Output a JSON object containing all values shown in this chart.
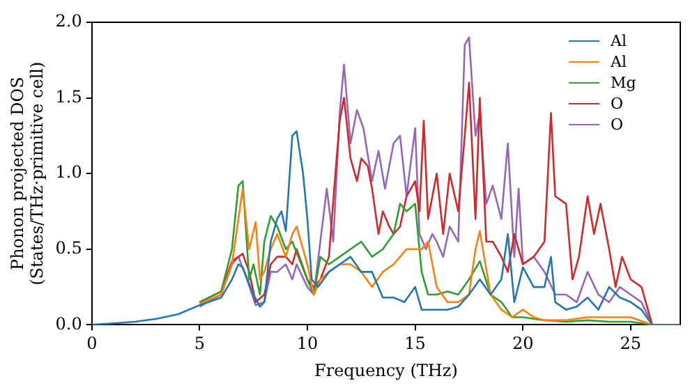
{
  "chart_data": {
    "type": "line",
    "xlabel": "Frequency (THz)",
    "ylabel": "Phonon projected DOS\n(States/THz·primitive cell)",
    "xlim": [
      0,
      27.3
    ],
    "ylim": [
      0,
      2
    ],
    "xticks": [
      0,
      5,
      10,
      15,
      20,
      25
    ],
    "yticks": [
      {
        "value": 0,
        "label": "0.0"
      },
      {
        "value": 0.5,
        "label": "0.5"
      },
      {
        "value": 1,
        "label": "1.0"
      },
      {
        "value": 1.5,
        "label": "1.5"
      },
      {
        "value": 2,
        "label": "2.0"
      }
    ],
    "legend": "top right",
    "grid": false,
    "marker": "none",
    "line_style": "solid",
    "series": [
      {
        "name": "Al",
        "color": "#1f77b4",
        "x": [
          0,
          1,
          2,
          3,
          4,
          5,
          6,
          6.5,
          6.8,
          7,
          7.5,
          7.8,
          8,
          8.3,
          8.6,
          8.8,
          9,
          9.3,
          9.5,
          9.8,
          10,
          10.2,
          10.5,
          11,
          11.5,
          12,
          12.5,
          13,
          13.5,
          14,
          14.5,
          15,
          15.3,
          16,
          16.5,
          17,
          17.5,
          18,
          18.5,
          19,
          19.3,
          19.6,
          20,
          20.5,
          21,
          21.3,
          21.5,
          22,
          22.5,
          23,
          23.5,
          24,
          24.5,
          25,
          25.5,
          26,
          27.3
        ],
        "values": [
          0,
          0.01,
          0.02,
          0.04,
          0.07,
          0.13,
          0.18,
          0.3,
          0.4,
          0.38,
          0.2,
          0.12,
          0.15,
          0.55,
          0.7,
          0.75,
          0.62,
          1.25,
          1.28,
          1,
          0.7,
          0.3,
          0.25,
          0.35,
          0.4,
          0.45,
          0.35,
          0.35,
          0.18,
          0.18,
          0.15,
          0.25,
          0.1,
          0.1,
          0.1,
          0.12,
          0.2,
          0.3,
          0.2,
          0.3,
          0.6,
          0.15,
          0.38,
          0.25,
          0.25,
          0.45,
          0.15,
          0.1,
          0.12,
          0.18,
          0.1,
          0.25,
          0.18,
          0.15,
          0.1,
          0,
          0
        ]
      },
      {
        "name": "Al",
        "color": "#ff7f0e",
        "x": [
          5,
          6,
          6.5,
          6.8,
          7,
          7.3,
          7.6,
          7.8,
          8,
          8.3,
          8.6,
          9,
          9.3,
          9.5,
          10,
          10.3,
          10.6,
          11,
          11.5,
          12,
          12.5,
          13,
          13.5,
          14,
          14.3,
          14.6,
          15,
          15.3,
          15.6,
          16,
          16.5,
          17,
          17.5,
          17.8,
          18,
          18.5,
          19,
          19.5,
          20,
          20.5,
          21,
          22,
          23,
          24,
          25,
          26,
          27.3
        ],
        "values": [
          0.14,
          0.2,
          0.4,
          0.7,
          0.9,
          0.5,
          0.68,
          0.3,
          0.35,
          0.5,
          0.6,
          0.45,
          0.6,
          0.65,
          0.4,
          0.2,
          0.3,
          0.35,
          0.4,
          0.4,
          0.35,
          0.25,
          0.35,
          0.4,
          0.45,
          0.5,
          0.5,
          0.5,
          0.55,
          0.25,
          0.15,
          0.15,
          0.2,
          0.5,
          0.62,
          0.2,
          0.1,
          0.05,
          0.1,
          0.05,
          0.03,
          0.03,
          0.05,
          0.05,
          0.05,
          0,
          0
        ]
      },
      {
        "name": "Mg",
        "color": "#2ca02c",
        "x": [
          5,
          6,
          6.5,
          6.8,
          7,
          7.3,
          7.5,
          7.8,
          8,
          8.3,
          8.6,
          9,
          9.3,
          10,
          10.3,
          10.6,
          11,
          11.5,
          12,
          12.5,
          13,
          13.5,
          14,
          14.3,
          14.6,
          15,
          15.3,
          15.6,
          16,
          16.5,
          17,
          17.5,
          18,
          18.5,
          19,
          19.5,
          20,
          21,
          22,
          23,
          24,
          25,
          26,
          27.3
        ],
        "values": [
          0.15,
          0.22,
          0.5,
          0.92,
          0.95,
          0.3,
          0.4,
          0.2,
          0.55,
          0.72,
          0.65,
          0.5,
          0.55,
          0.3,
          0.2,
          0.45,
          0.4,
          0.45,
          0.5,
          0.55,
          0.45,
          0.5,
          0.6,
          0.8,
          0.75,
          0.8,
          0.35,
          0.2,
          0.2,
          0.22,
          0.2,
          0.3,
          0.42,
          0.2,
          0.15,
          0.05,
          0.05,
          0.03,
          0.02,
          0.03,
          0.02,
          0.02,
          0,
          0
        ]
      },
      {
        "name": "O",
        "color": "#d62728",
        "x": [
          5,
          6,
          6.5,
          6.8,
          7,
          7.3,
          7.6,
          8,
          8.3,
          8.6,
          9,
          9.3,
          9.5,
          10,
          10.3,
          10.6,
          11,
          11.3,
          11.5,
          11.7,
          12,
          12.3,
          12.5,
          12.8,
          13,
          13.3,
          13.5,
          13.8,
          14,
          14.3,
          14.6,
          15,
          15.2,
          15.4,
          15.6,
          16,
          16.3,
          16.6,
          17,
          17.3,
          17.5,
          17.8,
          18,
          18.3,
          18.6,
          19,
          19.3,
          19.6,
          20,
          20.5,
          21,
          21.3,
          21.5,
          22,
          22.3,
          22.6,
          23,
          23.3,
          23.6,
          24,
          24.3,
          24.6,
          25,
          25.5,
          26,
          27.3
        ],
        "values": [
          0.15,
          0.22,
          0.42,
          0.45,
          0.47,
          0.35,
          0.15,
          0.2,
          0.4,
          0.45,
          0.45,
          0.4,
          0.5,
          0.3,
          0.25,
          0.3,
          0.45,
          1,
          1.35,
          1.5,
          1.1,
          0.95,
          1.1,
          1.05,
          0.9,
          0.6,
          0.75,
          0.65,
          0.6,
          0.65,
          0.85,
          0.95,
          0.75,
          1.35,
          0.7,
          1,
          0.6,
          1,
          0.75,
          1.25,
          1.6,
          0.7,
          1.5,
          0.55,
          0.55,
          0.45,
          0.35,
          0.6,
          0.4,
          0.45,
          0.55,
          1.4,
          0.85,
          0.8,
          0.3,
          0.45,
          0.85,
          0.6,
          0.8,
          0.5,
          0.25,
          0.45,
          0.3,
          0.25,
          0,
          0
        ]
      },
      {
        "name": "O",
        "color": "#9467bd",
        "x": [
          5,
          6,
          6.5,
          6.8,
          7.2,
          7.6,
          8,
          8.3,
          8.6,
          9,
          9.3,
          9.5,
          10,
          10.3,
          10.6,
          10.9,
          11.2,
          11.5,
          11.7,
          12,
          12.3,
          12.6,
          13,
          13.3,
          13.6,
          14,
          14.3,
          14.6,
          15,
          15.2,
          15.5,
          15.8,
          16,
          16.3,
          16.6,
          17,
          17.3,
          17.5,
          17.8,
          18,
          18.3,
          18.6,
          19,
          19.3,
          19.6,
          19.8,
          20,
          20.5,
          21,
          21.5,
          22,
          22.5,
          23,
          23.5,
          24,
          24.5,
          25,
          25.5,
          26,
          27.3
        ],
        "values": [
          0.12,
          0.2,
          0.4,
          0.45,
          0.3,
          0.13,
          0.15,
          0.35,
          0.35,
          0.4,
          0.3,
          0.4,
          0.25,
          0.2,
          0.55,
          0.9,
          0.55,
          1.4,
          1.72,
          1.2,
          1.42,
          1.3,
          0.95,
          1.15,
          0.9,
          1.2,
          1.25,
          0.85,
          1.3,
          0.6,
          0.5,
          0.6,
          0.55,
          0.45,
          0.65,
          0.55,
          1.85,
          1.9,
          1.25,
          1.4,
          0.8,
          0.92,
          0.7,
          1.2,
          0.45,
          0.9,
          0.4,
          0.45,
          0.35,
          0.2,
          0.2,
          0.15,
          0.35,
          0.2,
          0.15,
          0.25,
          0.2,
          0.15,
          0,
          0
        ]
      }
    ]
  }
}
